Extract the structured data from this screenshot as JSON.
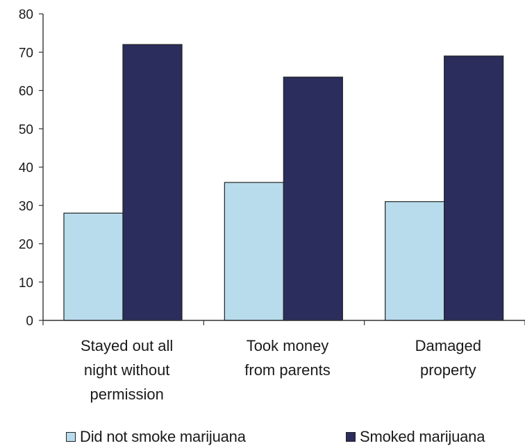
{
  "chart_data": {
    "type": "bar",
    "categories": [
      [
        "Stayed out all",
        "night without",
        "permission"
      ],
      [
        "Took money",
        "from parents"
      ],
      [
        "Damaged",
        "property"
      ]
    ],
    "series": [
      {
        "name": "Did not smoke marijuana",
        "values": [
          28,
          36,
          31
        ],
        "color": "#b8dcec"
      },
      {
        "name": "Smoked marijuana",
        "values": [
          72,
          63.5,
          69
        ],
        "color": "#2b2d5c"
      }
    ],
    "ylim": [
      0,
      80
    ],
    "yticks": [
      0,
      10,
      20,
      30,
      40,
      50,
      60,
      70,
      80
    ],
    "grid": false,
    "legend_position": "bottom"
  }
}
